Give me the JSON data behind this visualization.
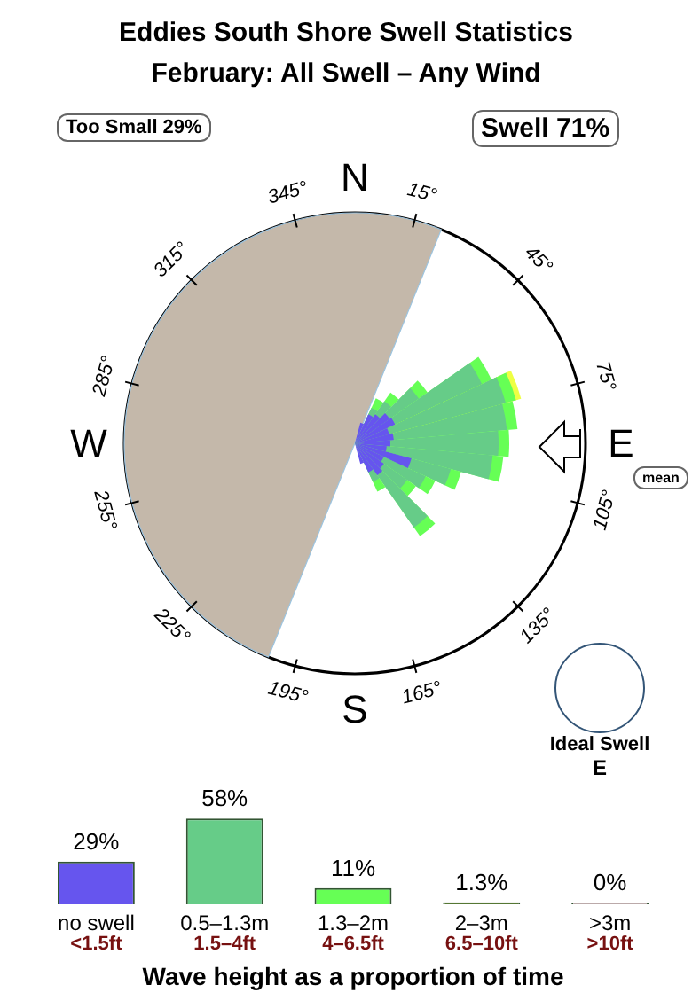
{
  "chart_data": {
    "type": "bar",
    "title": "Eddies South Shore Swell Statistics",
    "subtitle": "February: All Swell – Any Wind",
    "xlabel": "Wave height as a proportion of time",
    "categories": [
      "no swell",
      "0.5–1.3m",
      "1.3–2m",
      "2–3m",
      ">3m"
    ],
    "values": [
      29,
      58,
      11,
      1.3,
      0
    ],
    "colors": [
      "#6655ee",
      "#66cc88",
      "#66ff55",
      "#557733",
      "#bbaaaa"
    ],
    "value_labels": [
      "29%",
      "58%",
      "11%",
      "1.3%",
      "0%"
    ],
    "annotations": [
      "Too Small 29%",
      "Swell 71%",
      "N",
      "E",
      "S",
      "W",
      "15°",
      "45°",
      "75°",
      "105°",
      "135°",
      "165°",
      "195°",
      "225°",
      "255°",
      "285°",
      "315°",
      "345°",
      "mean",
      "Ideal Swell",
      "E",
      "<1.5ft",
      "1.5–4ft",
      "4–6.5ft",
      "6.5–10ft",
      ">10ft"
    ],
    "grid": false,
    "legend": false
  }
}
